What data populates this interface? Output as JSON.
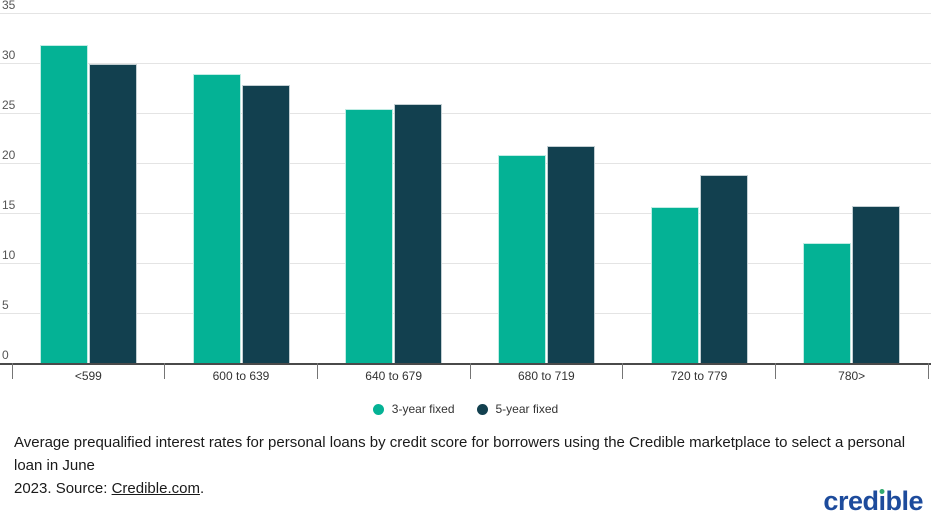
{
  "chart_data": {
    "type": "bar",
    "title": "",
    "xlabel": "",
    "ylabel": "",
    "categories": [
      "<599",
      "600 to 639",
      "640 to 679",
      "680 to 719",
      "720 to 779",
      "780>"
    ],
    "series": [
      {
        "name": "3-year fixed",
        "color": "#04b295",
        "values": [
          31.8,
          28.9,
          25.4,
          20.8,
          15.6,
          12.0
        ]
      },
      {
        "name": "5-year fixed",
        "color": "#12404f",
        "values": [
          29.9,
          27.8,
          25.9,
          21.7,
          18.8,
          15.7
        ]
      }
    ],
    "ylim": [
      0,
      35
    ],
    "yticks": [
      0,
      5,
      10,
      15,
      20,
      25,
      30,
      35
    ],
    "grid": "horizontal",
    "legend_position": "bottom",
    "colors": {
      "grid": "#e4e4e4",
      "axis": "#4a4a4a",
      "tick": "#757575",
      "axis_label": "#555555",
      "category_label": "#333333"
    }
  },
  "caption": {
    "line1": "Average prequalified interest rates for personal loans by credit score for borrowers using the Credible marketplace to select a personal loan in June",
    "line2_before_link": "2023. Source: ",
    "link_text": "Credible.com",
    "line2_after_link": "."
  },
  "logo": {
    "text": "credible",
    "part_before_i": "cred",
    "i_char": "ı",
    "part_after_i": "ble",
    "text_color": "#1d4b9c",
    "dot_color": "#31a96f"
  }
}
